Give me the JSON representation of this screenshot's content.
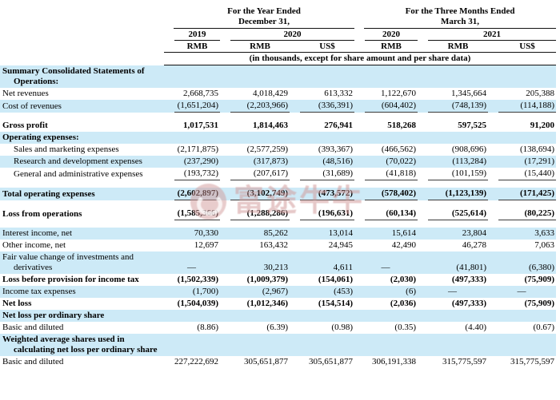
{
  "header": {
    "group1_title": "For the Year Ended\nDecember 31,",
    "group2_title": "For the Three Months Ended\nMarch 31,",
    "years": [
      "2019",
      "2020",
      "2020",
      "2021"
    ],
    "units": [
      "RMB",
      "RMB",
      "US$",
      "RMB",
      "RMB",
      "US$"
    ],
    "note": "(in thousands, except for share amount and per share data)"
  },
  "watermark": {
    "logo": "futu-bull-logo",
    "text": "富途牛牛"
  },
  "colors": {
    "row_highlight_blue": "#cdeaf7",
    "rule_black": "#111111",
    "watermark_pink": "#d29a9a"
  },
  "table": {
    "rows": [
      {
        "type": "section",
        "bg": "blue",
        "bold": true,
        "indent": 0,
        "label": "Summary Consolidated Statements of Operations:"
      },
      {
        "type": "data",
        "bg": "white",
        "bold": false,
        "indent": 0,
        "label": "Net revenues",
        "values": [
          "2,668,735",
          "4,018,429",
          "613,332",
          "1,122,670",
          "1,345,664",
          "205,388"
        ]
      },
      {
        "type": "data",
        "bg": "blue",
        "bold": false,
        "indent": 0,
        "underline": true,
        "label": "Cost of revenues",
        "values": [
          "(1,651,204)",
          "(2,203,966)",
          "(336,391)",
          "(604,402)",
          "(748,139)",
          "(114,188)"
        ]
      },
      {
        "type": "spacer"
      },
      {
        "type": "data",
        "bg": "white",
        "bold": true,
        "indent": 0,
        "label": "Gross profit",
        "values": [
          "1,017,531",
          "1,814,463",
          "276,941",
          "518,268",
          "597,525",
          "91,200"
        ]
      },
      {
        "type": "section",
        "bg": "blue",
        "bold": true,
        "indent": 0,
        "label": "Operating expenses:"
      },
      {
        "type": "data",
        "bg": "white",
        "bold": false,
        "indent": 1,
        "label": "Sales and marketing expenses",
        "values": [
          "(2,171,875)",
          "(2,577,259)",
          "(393,367)",
          "(466,562)",
          "(908,696)",
          "(138,694)"
        ]
      },
      {
        "type": "data",
        "bg": "blue",
        "bold": false,
        "indent": 1,
        "label": "Research and development expenses",
        "values": [
          "(237,290)",
          "(317,873)",
          "(48,516)",
          "(70,022)",
          "(113,284)",
          "(17,291)"
        ]
      },
      {
        "type": "data",
        "bg": "white",
        "bold": false,
        "indent": 1,
        "underline": true,
        "label": "General and administrative expenses",
        "values": [
          "(193,732)",
          "(207,617)",
          "(31,689)",
          "(41,818)",
          "(101,159)",
          "(15,440)"
        ]
      },
      {
        "type": "spacer"
      },
      {
        "type": "data",
        "bg": "blue",
        "bold": true,
        "indent": 0,
        "underline": true,
        "label": "Total operating expenses",
        "values": [
          "(2,602,897)",
          "(3,102,749)",
          "(473,572)",
          "(578,402)",
          "(1,123,139)",
          "(171,425)"
        ]
      },
      {
        "type": "spacer"
      },
      {
        "type": "data",
        "bg": "white",
        "bold": true,
        "indent": 0,
        "underline": true,
        "label": "Loss from operations",
        "values": [
          "(1,585,366)",
          "(1,288,286)",
          "(196,631)",
          "(60,134)",
          "(525,614)",
          "(80,225)"
        ]
      },
      {
        "type": "spacer"
      },
      {
        "type": "data",
        "bg": "blue",
        "bold": false,
        "indent": 0,
        "label": "Interest income, net",
        "values": [
          "70,330",
          "85,262",
          "13,014",
          "15,614",
          "23,804",
          "3,633"
        ]
      },
      {
        "type": "data",
        "bg": "white",
        "bold": false,
        "indent": 0,
        "label": "Other income, net",
        "values": [
          "12,697",
          "163,432",
          "24,945",
          "42,490",
          "46,278",
          "7,063"
        ]
      },
      {
        "type": "data",
        "bg": "blue",
        "bold": false,
        "indent": 0,
        "label": "Fair value change of investments and derivatives",
        "values": [
          "—",
          "30,213",
          "4,611",
          "—",
          "(41,801)",
          "(6,380)"
        ]
      },
      {
        "type": "data",
        "bg": "white",
        "bold": true,
        "indent": 0,
        "label": "Loss before provision for income tax",
        "values": [
          "(1,502,339)",
          "(1,009,379)",
          "(154,061)",
          "(2,030)",
          "(497,333)",
          "(75,909)"
        ]
      },
      {
        "type": "data",
        "bg": "blue",
        "bold": false,
        "indent": 0,
        "label": "Income tax expenses",
        "values": [
          "(1,700)",
          "(2,967)",
          "(453)",
          "(6)",
          "—",
          "—"
        ]
      },
      {
        "type": "data",
        "bg": "white",
        "bold": true,
        "indent": 0,
        "label": "Net loss",
        "values": [
          "(1,504,039)",
          "(1,012,346)",
          "(154,514)",
          "(2,036)",
          "(497,333)",
          "(75,909)"
        ]
      },
      {
        "type": "section",
        "bg": "blue",
        "bold": true,
        "indent": 0,
        "label": "Net loss per ordinary share"
      },
      {
        "type": "data",
        "bg": "white",
        "bold": false,
        "indent": 0,
        "label": "Basic and diluted",
        "values": [
          "(8.86)",
          "(6.39)",
          "(0.98)",
          "(0.35)",
          "(4.40)",
          "(0.67)"
        ]
      },
      {
        "type": "section",
        "bg": "blue",
        "bold": true,
        "indent": 0,
        "label": "Weighted average shares used in calculating net loss per ordinary share"
      },
      {
        "type": "data",
        "bg": "white",
        "bold": false,
        "indent": 0,
        "label": "Basic and diluted",
        "values": [
          "227,222,692",
          "305,651,877",
          "305,651,877",
          "306,191,338",
          "315,775,597",
          "315,775,597"
        ]
      }
    ]
  }
}
